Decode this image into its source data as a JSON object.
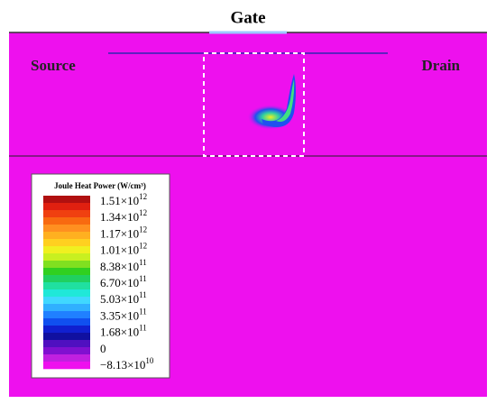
{
  "labels": {
    "gate": "Gate",
    "source": "Source",
    "drain": "Drain"
  },
  "colorbar": {
    "title": "Joule Heat Power (W/cm³)",
    "ticks": [
      {
        "base": "1.51×10",
        "exp": "12"
      },
      {
        "base": "1.34×10",
        "exp": "12"
      },
      {
        "base": "1.17×10",
        "exp": "12"
      },
      {
        "base": "1.01×10",
        "exp": "12"
      },
      {
        "base": "8.38×10",
        "exp": "11"
      },
      {
        "base": "6.70×10",
        "exp": "11"
      },
      {
        "base": "5.03×10",
        "exp": "11"
      },
      {
        "base": "3.35×10",
        "exp": "11"
      },
      {
        "base": "1.68×10",
        "exp": "11"
      },
      {
        "base": "0"
      },
      {
        "base": "−8.13×10",
        "exp": "10"
      }
    ],
    "colors": [
      "#b01010",
      "#e02010",
      "#f04010",
      "#f86a10",
      "#ff9020",
      "#ffb020",
      "#ffd020",
      "#f0f020",
      "#c8f020",
      "#80e020",
      "#30d020",
      "#20d060",
      "#20e0a0",
      "#20e8d8",
      "#40d8ff",
      "#30b0ff",
      "#2080ff",
      "#1050f0",
      "#1020d0",
      "#1010a0",
      "#5010c0",
      "#8010d0",
      "#c020e0",
      "#ee10ee"
    ]
  }
}
